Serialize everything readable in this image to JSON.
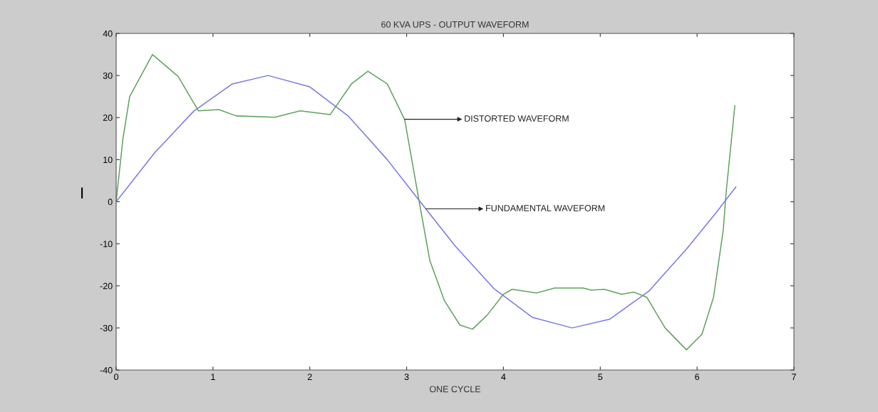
{
  "chart_data": {
    "type": "line",
    "title": "60 KVA UPS - OUTPUT WAVEFORM",
    "xlabel": "ONE CYCLE",
    "ylabel": "I",
    "xlim": [
      0,
      7
    ],
    "xticks": [
      0,
      1,
      2,
      3,
      4,
      5,
      6,
      7
    ],
    "ylim": [
      -40,
      40
    ],
    "yticks": [
      -40,
      -30,
      -20,
      -10,
      0,
      10,
      20,
      30,
      40
    ],
    "grid": false,
    "legend": false,
    "marker": "none",
    "line_style": "solid",
    "series": [
      {
        "color": "#7878e8",
        "x": [
          0,
          0.4,
          0.8,
          1.2,
          1.57,
          2.0,
          2.4,
          2.8,
          3.14,
          3.5,
          3.9,
          4.3,
          4.71,
          5.1,
          5.5,
          5.9,
          6.2,
          6.4
        ],
        "values": [
          0,
          11.7,
          21.5,
          28,
          30,
          27.3,
          20.3,
          10,
          0,
          -10.5,
          -20.6,
          -27.5,
          -30,
          -27.9,
          -21.3,
          -11,
          -2.5,
          3.5
        ]
      },
      {
        "color": "#5fa35f",
        "x": [
          0,
          0.07,
          0.14,
          0.375,
          0.64,
          0.85,
          1.06,
          1.24,
          1.64,
          1.9,
          2.21,
          2.43,
          2.6,
          2.8,
          2.98,
          3.13,
          3.24,
          3.39,
          3.55,
          3.68,
          3.83,
          4.0,
          4.09,
          4.34,
          4.53,
          4.82,
          4.91,
          5.04,
          5.22,
          5.35,
          5.48,
          5.67,
          5.89,
          6.05,
          6.17,
          6.27,
          6.3,
          6.39
        ],
        "values": [
          0,
          15,
          25,
          35,
          29.8,
          21.6,
          21.9,
          20.4,
          20.1,
          21.6,
          20.7,
          28,
          31,
          28,
          19.5,
          0,
          -14,
          -23.5,
          -29.3,
          -30.3,
          -27,
          -22,
          -20.8,
          -21.7,
          -20.5,
          -20.5,
          -21,
          -20.8,
          -22,
          -21.5,
          -22.7,
          -30,
          -35.2,
          -31.5,
          -22.7,
          -6.8,
          2.2,
          22.8
        ]
      }
    ],
    "annotations": [
      {
        "text": "DISTORTED WAVEFORM",
        "x": 2.98,
        "y": 19.6
      },
      {
        "text": "FUNDAMENTAL WAVEFORM",
        "x": 3.2,
        "y": -1.7
      }
    ]
  }
}
